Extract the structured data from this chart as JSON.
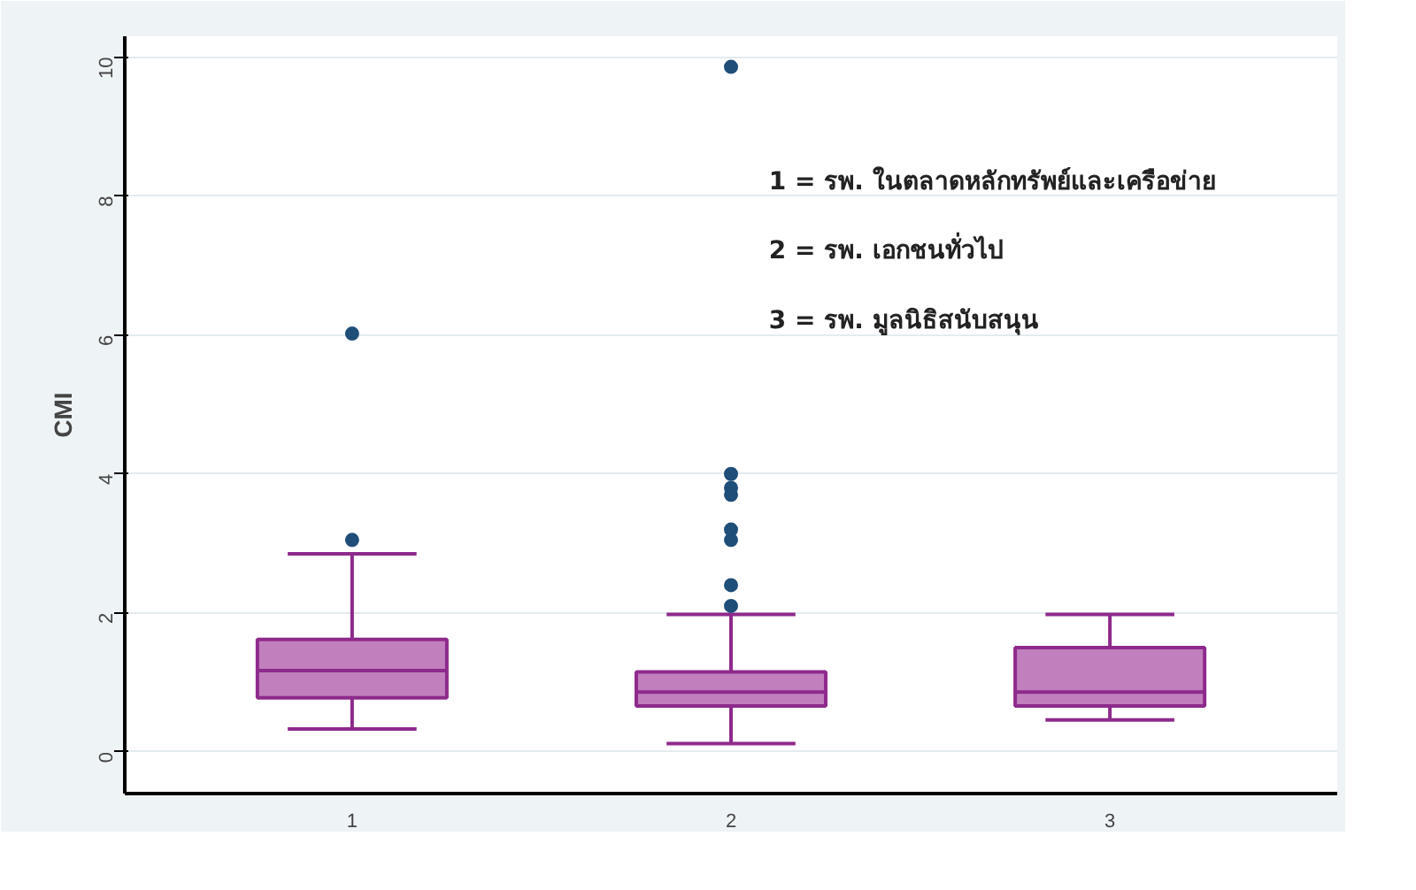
{
  "chart_data": {
    "type": "box",
    "ylabel": "CMI",
    "categories": [
      "1",
      "2",
      "3"
    ],
    "boxes": [
      {
        "low": 0.33,
        "q1": 0.78,
        "median": 1.17,
        "q3": 1.62,
        "high": 2.85,
        "outliers": [
          3.05,
          6.02
        ]
      },
      {
        "low": 0.12,
        "q1": 0.66,
        "median": 0.86,
        "q3": 1.15,
        "high": 1.98,
        "outliers": [
          9.86,
          4.0,
          3.8,
          3.7,
          3.2,
          3.05,
          2.4,
          2.1
        ]
      },
      {
        "low": 0.46,
        "q1": 0.66,
        "median": 0.86,
        "q3": 1.5,
        "high": 1.98
      }
    ],
    "color": "#c17fbd",
    "ylim": [
      -0.6,
      10.3
    ],
    "yticks": [
      0,
      2,
      4,
      6,
      8,
      10
    ],
    "grid": "y",
    "annotations": [
      "1 = รพ. ในตลาดหลักทรัพย์และเครือข่าย",
      "2 = รพ. เอกชนทั่วไป",
      "3 = รพ. มูลนิธิสนับสนุน"
    ]
  }
}
